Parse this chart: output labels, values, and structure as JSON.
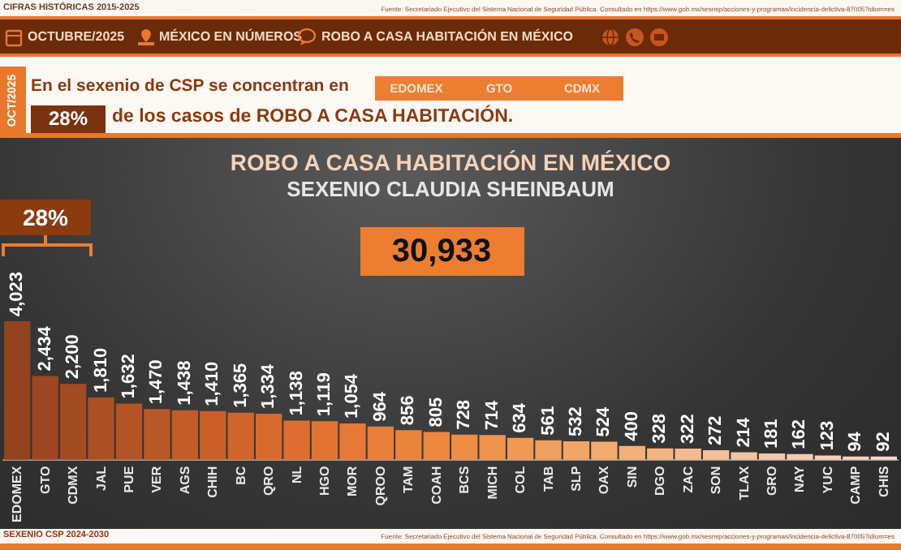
{
  "chart_data": {
    "type": "bar",
    "title": "ROBO A CASA HABITACIÓN EN MÉXICO",
    "subtitle": "SEXENIO CLAUDIA SHEINBAUM",
    "categories": [
      "EDOMEX",
      "GTO",
      "CDMX",
      "JAL",
      "PUE",
      "VER",
      "AGS",
      "CHIH",
      "BC",
      "QRO",
      "NL",
      "HGO",
      "MOR",
      "QROO",
      "TAM",
      "COAH",
      "BCS",
      "MICH",
      "COL",
      "TAB",
      "SLP",
      "OAX",
      "SIN",
      "DGO",
      "ZAC",
      "SON",
      "TLAX",
      "GRO",
      "NAY",
      "YUC",
      "CAMP",
      "CHIS"
    ],
    "values": [
      4023,
      2434,
      2200,
      1810,
      1632,
      1470,
      1438,
      1410,
      1365,
      1334,
      1138,
      1119,
      1054,
      964,
      856,
      805,
      728,
      714,
      634,
      561,
      532,
      524,
      400,
      328,
      322,
      272,
      214,
      181,
      162,
      123,
      94,
      92
    ],
    "colors": [
      "#94431f",
      "#9c4721",
      "#a34b22",
      "#ab5024",
      "#b35426",
      "#ba5827",
      "#c25c29",
      "#c9602a",
      "#d1652c",
      "#d8692d",
      "#df6d2f",
      "#e37331",
      "#e67935",
      "#e87e38",
      "#ea833c",
      "#ec8840",
      "#ee8d45",
      "#ef934d",
      "#f09955",
      "#f19f5e",
      "#f2a566",
      "#f3ab70",
      "#f3b07a",
      "#f4b584",
      "#f4ba8e",
      "#f5bf98",
      "#f5c3a0",
      "#f6c7a8",
      "#f6cbb0",
      "#f7cfb7",
      "#f7d3be",
      "#f8d7c5"
    ],
    "value_labels": [
      "4,023",
      "2,434",
      "2,200",
      "1,810",
      "1,632",
      "1,470",
      "1,438",
      "1,410",
      "1,365",
      "1,334",
      "1,138",
      "1,119",
      "1,054",
      "964",
      "856",
      "805",
      "728",
      "714",
      "634",
      "561",
      "532",
      "524",
      "400",
      "328",
      "322",
      "272",
      "214",
      "181",
      "162",
      "123",
      "94",
      "92"
    ],
    "annotations": [
      "CIFRAS HISTÓRICAS 2015-2025",
      "Fuente: Secretariado Ejecutivo del Sistema Nacional de Seguridad Pública. Consultado en https://www.gob.mx/sesnsp/acciones-y-programas/incidencia-delictiva-87005?idiom=es",
      "OCTUBRE/2025",
      "MÉXICO EN NÚMEROS",
      "ROBO A CASA HABITACIÓN EN MÉXICO",
      "OCT/2025",
      "En el sexenio de CSP se concentran en",
      "EDOMEX",
      "GTO",
      "CDMX",
      "28%",
      "de los casos de ROBO A CASA HABITACIÓN.",
      "30,933",
      "28%",
      "SEXENIO CSP 2024-2030",
      "Fuente: Secretariado Ejecutivo del Sistema Nacional de Seguridad Pública. Consultado en https://www.gob.mx/sesnsp/acciones-y-programas/incidencia-delictiva-87005?idiom=es"
    ]
  }
}
